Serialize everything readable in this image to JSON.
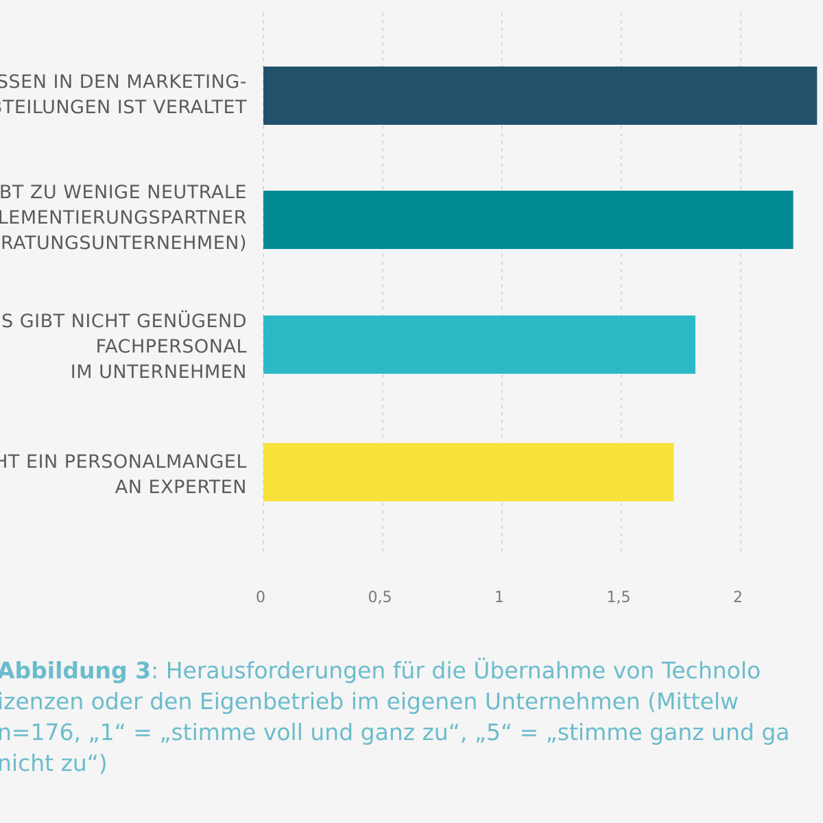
{
  "chart_data": {
    "type": "bar",
    "orientation": "horizontal",
    "categories": [
      [
        "SSEN IN DEN MARKETING-",
        "BTEILUNGEN IST VERALTET"
      ],
      [
        "IBT ZU WENIGE NEUTRALE",
        "LEMENTIERUNGSPARTNER",
        "RATUNGSUNTERNEHMEN)"
      ],
      [
        "ES GIBT NICHT GENÜGEND",
        "FACHPERSONAL",
        "IM UNTERNEHMEN"
      ],
      [
        "HT EIN PERSONALMANGEL",
        "AN EXPERTEN"
      ]
    ],
    "values": [
      2.32,
      2.22,
      1.81,
      1.72
    ],
    "colors": [
      "#23516c",
      "#008a93",
      "#2db8c5",
      "#f7e23a"
    ],
    "xticks": [
      "0",
      "0,5",
      "1",
      "1,5",
      "2"
    ],
    "xlim": [
      0,
      2.5
    ],
    "grid": "vertical dashed"
  },
  "caption": {
    "label": "Abbildung 3",
    "lines": [
      ": Herausforderungen für die Übernahme von Technolo",
      "izenzen oder den Eigenbetrieb im eigenen Unternehmen (Mittelw",
      "n=176, „1“ = „stimme voll und ganz zu“, „5“ = „stimme ganz und ga",
      "nicht zu“)"
    ]
  }
}
